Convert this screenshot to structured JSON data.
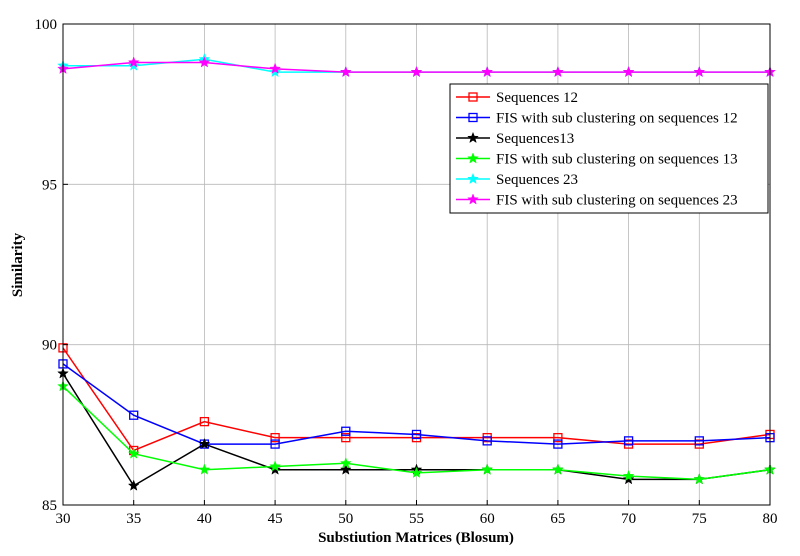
{
  "chart_data": {
    "type": "line",
    "title": "",
    "xlabel": "Substiution Matrices (Blosum)",
    "ylabel": "Similarity",
    "x": [
      30,
      35,
      40,
      45,
      50,
      55,
      60,
      65,
      70,
      75,
      80
    ],
    "xlim": [
      30,
      80
    ],
    "ylim": [
      85,
      100
    ],
    "xticks": [
      30,
      35,
      40,
      45,
      50,
      55,
      60,
      65,
      70,
      75,
      80
    ],
    "yticks": [
      85,
      90,
      95,
      100
    ],
    "grid": true,
    "legend_position": "upper-right",
    "series": [
      {
        "name": "Sequences 12",
        "color": "#ff0000",
        "marker": "square",
        "values": [
          89.9,
          86.7,
          87.6,
          87.1,
          87.1,
          87.1,
          87.1,
          87.1,
          86.9,
          86.9,
          87.2
        ]
      },
      {
        "name": "FIS with sub clustering on sequences 12",
        "color": "#0000ff",
        "marker": "square",
        "values": [
          89.4,
          87.8,
          86.9,
          86.9,
          87.3,
          87.2,
          87.0,
          86.9,
          87.0,
          87.0,
          87.1
        ]
      },
      {
        "name": "Sequences13",
        "color": "#000000",
        "marker": "star",
        "values": [
          89.1,
          85.6,
          86.9,
          86.1,
          86.1,
          86.1,
          86.1,
          86.1,
          85.8,
          85.8,
          86.1
        ]
      },
      {
        "name": "FIS with sub clustering on sequences 13",
        "color": "#00ff00",
        "marker": "star",
        "values": [
          88.7,
          86.6,
          86.1,
          86.2,
          86.3,
          86.0,
          86.1,
          86.1,
          85.9,
          85.8,
          86.1
        ]
      },
      {
        "name": "Sequences 23",
        "color": "#00ffff",
        "marker": "star",
        "values": [
          98.7,
          98.7,
          98.9,
          98.5,
          98.5,
          98.5,
          98.5,
          98.5,
          98.5,
          98.5,
          98.5
        ]
      },
      {
        "name": "FIS with sub clustering on sequences 23",
        "color": "#ff00ff",
        "marker": "star",
        "values": [
          98.6,
          98.8,
          98.8,
          98.6,
          98.5,
          98.5,
          98.5,
          98.5,
          98.5,
          98.5,
          98.5
        ]
      }
    ]
  }
}
